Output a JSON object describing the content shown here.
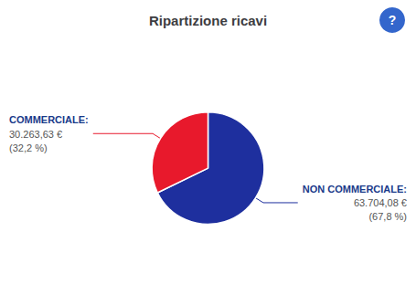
{
  "chart_data": {
    "type": "pie",
    "title": "Ripartizione ricavi",
    "categories": [
      "NON COMMERCIALE:",
      "COMMERCIALE:"
    ],
    "values": [
      63704.08,
      30263.63
    ],
    "value_labels": [
      "63.704,08 €",
      "30.263,63 €"
    ],
    "percentages": [
      67.8,
      32.2
    ],
    "percentage_labels": [
      "(67,8 %)",
      "(32,2 %)"
    ],
    "colors": [
      "#1e2f9e",
      "#e8192c"
    ],
    "annotations": [
      "?"
    ]
  }
}
